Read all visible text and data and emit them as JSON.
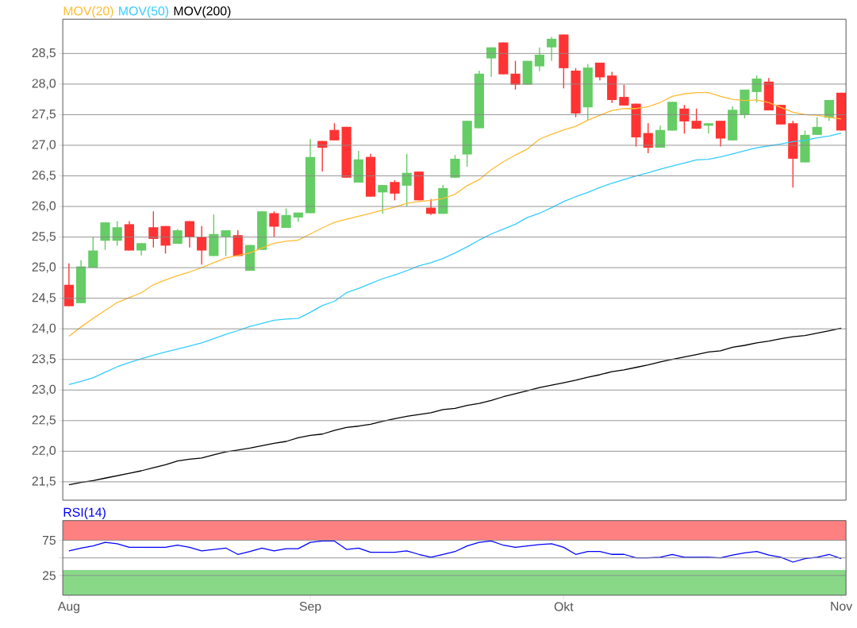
{
  "chart_data": [
    {
      "type": "candlestick",
      "tick_labels": "y",
      "grid": "y",
      "legend": "top left",
      "categories": [
        null,
        null,
        null,
        null,
        null,
        null,
        null,
        null,
        null,
        null,
        null,
        null,
        null,
        null,
        null,
        null,
        null,
        null,
        null,
        null,
        null,
        null,
        null,
        null,
        null,
        null,
        null,
        null,
        null,
        null,
        null,
        null,
        null,
        null,
        null,
        null,
        null,
        null,
        null,
        null,
        null,
        null,
        null,
        null,
        null,
        null,
        null,
        null,
        null,
        null,
        null,
        null,
        null,
        null,
        null,
        null,
        null,
        null,
        null,
        null,
        null,
        null,
        null,
        null,
        null
      ],
      "ylim": [
        21.2,
        29.06
      ],
      "yticks": [
        {
          "value": 21.5,
          "label": "21,5"
        },
        {
          "value": 22,
          "label": "22,0"
        },
        {
          "value": 22.5,
          "label": "22,5"
        },
        {
          "value": 23,
          "label": "23,0"
        },
        {
          "value": 23.5,
          "label": "23,5"
        },
        {
          "value": 24,
          "label": "24,0"
        },
        {
          "value": 24.5,
          "label": "24,5"
        },
        {
          "value": 25,
          "label": "25,0"
        },
        {
          "value": 25.5,
          "label": "25,5"
        },
        {
          "value": 26,
          "label": "26,0"
        },
        {
          "value": 26.5,
          "label": "26,5"
        },
        {
          "value": 27,
          "label": "27,0"
        },
        {
          "value": 27.5,
          "label": "27,5"
        },
        {
          "value": 28,
          "label": "28,0"
        },
        {
          "value": 28.5,
          "label": "28,5"
        }
      ],
      "ohlc": [
        [
          24.72,
          25.07,
          24.37,
          24.37
        ],
        [
          24.42,
          25.12,
          24.42,
          25.02
        ],
        [
          25.0,
          25.5,
          25.0,
          25.28
        ],
        [
          25.44,
          25.74,
          25.29,
          25.74
        ],
        [
          25.44,
          25.76,
          25.36,
          25.66
        ],
        [
          25.71,
          25.76,
          25.28,
          25.28
        ],
        [
          25.28,
          25.4,
          25.2,
          25.4
        ],
        [
          25.66,
          25.92,
          25.33,
          25.47
        ],
        [
          25.68,
          25.68,
          25.23,
          25.36
        ],
        [
          25.39,
          25.63,
          25.39,
          25.61
        ],
        [
          25.76,
          25.76,
          25.33,
          25.5
        ],
        [
          25.5,
          25.68,
          25.05,
          25.28
        ],
        [
          25.19,
          25.87,
          25.19,
          25.55
        ],
        [
          25.5,
          25.61,
          25.19,
          25.61
        ],
        [
          25.53,
          25.61,
          25.19,
          25.19
        ],
        [
          24.95,
          25.37,
          24.95,
          25.37
        ],
        [
          25.29,
          25.92,
          25.29,
          25.92
        ],
        [
          25.89,
          25.92,
          25.5,
          25.67
        ],
        [
          25.65,
          25.97,
          25.65,
          25.86
        ],
        [
          25.82,
          25.9,
          25.75,
          25.9
        ],
        [
          25.89,
          27.1,
          25.89,
          26.81
        ],
        [
          27.07,
          27.07,
          26.57,
          26.96
        ],
        [
          27.25,
          27.36,
          27.08,
          27.08
        ],
        [
          27.3,
          27.3,
          26.47,
          26.47
        ],
        [
          26.39,
          26.91,
          26.39,
          26.77
        ],
        [
          26.81,
          26.86,
          26.16,
          26.16
        ],
        [
          26.23,
          26.35,
          25.88,
          26.35
        ],
        [
          26.4,
          26.43,
          26.1,
          26.21
        ],
        [
          26.34,
          26.86,
          26.0,
          26.55
        ],
        [
          26.57,
          26.57,
          26.1,
          26.1
        ],
        [
          25.98,
          26.12,
          25.86,
          25.88
        ],
        [
          25.88,
          26.35,
          25.88,
          26.3
        ],
        [
          26.47,
          26.84,
          26.47,
          26.78
        ],
        [
          26.85,
          27.4,
          26.65,
          27.4
        ],
        [
          27.28,
          28.22,
          27.28,
          28.17
        ],
        [
          28.42,
          28.6,
          28.12,
          28.6
        ],
        [
          28.68,
          28.68,
          28.16,
          28.16
        ],
        [
          28.17,
          28.38,
          27.91,
          27.99
        ],
        [
          27.99,
          28.38,
          27.99,
          28.38
        ],
        [
          28.29,
          28.6,
          28.21,
          28.48
        ],
        [
          28.6,
          28.77,
          28.38,
          28.74
        ],
        [
          28.81,
          28.81,
          27.93,
          28.26
        ],
        [
          28.22,
          28.26,
          27.46,
          27.52
        ],
        [
          27.62,
          28.33,
          27.41,
          28.27
        ],
        [
          28.35,
          28.35,
          28.06,
          28.11
        ],
        [
          28.14,
          28.2,
          27.69,
          27.74
        ],
        [
          27.79,
          27.99,
          27.65,
          27.65
        ],
        [
          27.68,
          27.68,
          26.98,
          27.13
        ],
        [
          27.2,
          27.36,
          26.87,
          26.96
        ],
        [
          26.96,
          27.32,
          26.96,
          27.25
        ],
        [
          27.24,
          27.71,
          27.24,
          27.71
        ],
        [
          27.6,
          27.66,
          27.19,
          27.39
        ],
        [
          27.4,
          27.6,
          27.27,
          27.27
        ],
        [
          27.32,
          27.36,
          27.19,
          27.36
        ],
        [
          27.4,
          27.4,
          26.98,
          27.11
        ],
        [
          27.08,
          27.64,
          27.08,
          27.58
        ],
        [
          27.5,
          27.91,
          27.44,
          27.91
        ],
        [
          27.87,
          28.14,
          27.7,
          28.09
        ],
        [
          28.04,
          28.1,
          27.57,
          27.57
        ],
        [
          27.66,
          27.66,
          27.34,
          27.34
        ],
        [
          27.36,
          27.4,
          26.31,
          26.78
        ],
        [
          26.72,
          27.24,
          26.72,
          27.17
        ],
        [
          27.17,
          27.46,
          27.17,
          27.3
        ],
        [
          27.45,
          27.74,
          27.4,
          27.74
        ],
        [
          27.86,
          27.86,
          27.24,
          27.24
        ]
      ],
      "colors": [
        "#ff3333",
        "#66cc66",
        "#66cc66",
        "#66cc66",
        "#66cc66",
        "#ff3333",
        "#66cc66",
        "#ff3333",
        "#ff3333",
        "#66cc66",
        "#ff3333",
        "#ff3333",
        "#66cc66",
        "#66cc66",
        "#ff3333",
        "#66cc66",
        "#66cc66",
        "#ff3333",
        "#66cc66",
        "#66cc66",
        "#66cc66",
        "#ff3333",
        "#ff3333",
        "#ff3333",
        "#66cc66",
        "#ff3333",
        "#66cc66",
        "#ff3333",
        "#66cc66",
        "#ff3333",
        "#ff3333",
        "#66cc66",
        "#66cc66",
        "#66cc66",
        "#66cc66",
        "#66cc66",
        "#ff3333",
        "#ff3333",
        "#66cc66",
        "#66cc66",
        "#66cc66",
        "#ff3333",
        "#ff3333",
        "#66cc66",
        "#ff3333",
        "#ff3333",
        "#ff3333",
        "#ff3333",
        "#ff3333",
        "#66cc66",
        "#66cc66",
        "#ff3333",
        "#ff3333",
        "#66cc66",
        "#ff3333",
        "#66cc66",
        "#66cc66",
        "#66cc66",
        "#ff3333",
        "#ff3333",
        "#ff3333",
        "#66cc66",
        "#66cc66",
        "#66cc66",
        "#ff3333"
      ],
      "series": [
        {
          "type": "line",
          "name": "MOV(20)",
          "color": "#ffbb33",
          "values": [
            23.88,
            24.03,
            24.17,
            24.3,
            24.43,
            24.51,
            24.59,
            24.72,
            24.8,
            24.87,
            24.93,
            25.0,
            25.08,
            25.16,
            25.2,
            25.24,
            25.32,
            25.4,
            25.43,
            25.45,
            25.55,
            25.65,
            25.74,
            25.79,
            25.84,
            25.89,
            25.94,
            25.99,
            26.05,
            26.08,
            26.1,
            26.13,
            26.2,
            26.34,
            26.44,
            26.6,
            26.73,
            26.84,
            26.94,
            27.1,
            27.18,
            27.25,
            27.31,
            27.41,
            27.49,
            27.57,
            27.6,
            27.6,
            27.63,
            27.7,
            27.8,
            27.84,
            27.86,
            27.86,
            27.8,
            27.75,
            27.73,
            27.74,
            27.7,
            27.62,
            27.54,
            27.5,
            27.49,
            27.46,
            27.43
          ]
        },
        {
          "type": "line",
          "name": "MOV(50)",
          "color": "#33ccff",
          "values": [
            23.09,
            23.14,
            23.2,
            23.29,
            23.38,
            23.45,
            23.51,
            23.57,
            23.62,
            23.67,
            23.72,
            23.77,
            23.84,
            23.91,
            23.97,
            24.04,
            24.09,
            24.14,
            24.16,
            24.17,
            24.27,
            24.38,
            24.45,
            24.59,
            24.66,
            24.74,
            24.82,
            24.88,
            24.95,
            25.03,
            25.08,
            25.15,
            25.24,
            25.34,
            25.45,
            25.55,
            25.63,
            25.71,
            25.82,
            25.89,
            25.98,
            26.08,
            26.16,
            26.23,
            26.31,
            26.38,
            26.44,
            26.5,
            26.55,
            26.61,
            26.66,
            26.71,
            26.76,
            26.77,
            26.81,
            26.86,
            26.91,
            26.96,
            26.99,
            27.02,
            27.06,
            27.08,
            27.12,
            27.15,
            27.2
          ]
        },
        {
          "type": "line",
          "name": "MOV(200)",
          "color": "#000000",
          "values": [
            21.45,
            21.49,
            21.52,
            21.56,
            21.6,
            21.64,
            21.68,
            21.73,
            21.78,
            21.84,
            21.87,
            21.89,
            21.94,
            21.99,
            22.02,
            22.05,
            22.09,
            22.13,
            22.16,
            22.22,
            22.26,
            22.28,
            22.34,
            22.39,
            22.41,
            22.44,
            22.49,
            22.53,
            22.57,
            22.6,
            22.63,
            22.68,
            22.7,
            22.75,
            22.78,
            22.83,
            22.89,
            22.94,
            22.99,
            23.04,
            23.08,
            23.12,
            23.16,
            23.21,
            23.25,
            23.3,
            23.33,
            23.37,
            23.41,
            23.46,
            23.5,
            23.54,
            23.58,
            23.62,
            23.64,
            23.7,
            23.73,
            23.77,
            23.8,
            23.84,
            23.87,
            23.89,
            23.93,
            23.97,
            24.01
          ]
        }
      ]
    },
    {
      "type": "line",
      "grid": "y",
      "legend": "top left",
      "categories": [
        "Aug",
        null,
        null,
        null,
        null,
        null,
        null,
        null,
        null,
        null,
        null,
        null,
        null,
        null,
        null,
        null,
        null,
        null,
        null,
        null,
        "Sep",
        null,
        null,
        null,
        null,
        null,
        null,
        null,
        null,
        null,
        null,
        null,
        null,
        null,
        null,
        null,
        null,
        null,
        null,
        null,
        null,
        "Okt",
        null,
        null,
        null,
        null,
        null,
        null,
        null,
        null,
        null,
        null,
        null,
        null,
        null,
        null,
        null,
        null,
        null,
        null,
        null,
        null,
        null,
        null,
        "Nov"
      ],
      "ylim": [
        -3,
        103
      ],
      "yticks": [
        25,
        {
          "value": 50,
          "label": null
        },
        75
      ],
      "bands": [
        {
          "axis": "y",
          "from": 75,
          "to": 103,
          "color": "#ff8080"
        },
        {
          "axis": "y",
          "from": -3,
          "to": 33,
          "color": "#88d888"
        }
      ],
      "series": [
        {
          "name": "RSI(14)",
          "color": "#0000ff",
          "values": [
            60,
            64,
            67,
            72,
            70,
            65,
            65,
            65,
            65,
            68,
            65,
            60,
            62,
            64,
            55,
            59,
            64,
            60,
            63,
            63,
            72,
            74,
            74,
            62,
            64,
            58,
            58,
            58,
            60,
            55,
            51,
            55,
            59,
            67,
            72,
            74,
            68,
            65,
            67,
            69,
            70,
            65,
            55,
            59,
            59,
            55,
            55,
            50,
            50,
            51,
            55,
            51,
            51,
            51,
            50,
            54,
            57,
            59,
            54,
            51,
            44,
            49,
            51,
            55,
            49
          ]
        }
      ]
    }
  ]
}
